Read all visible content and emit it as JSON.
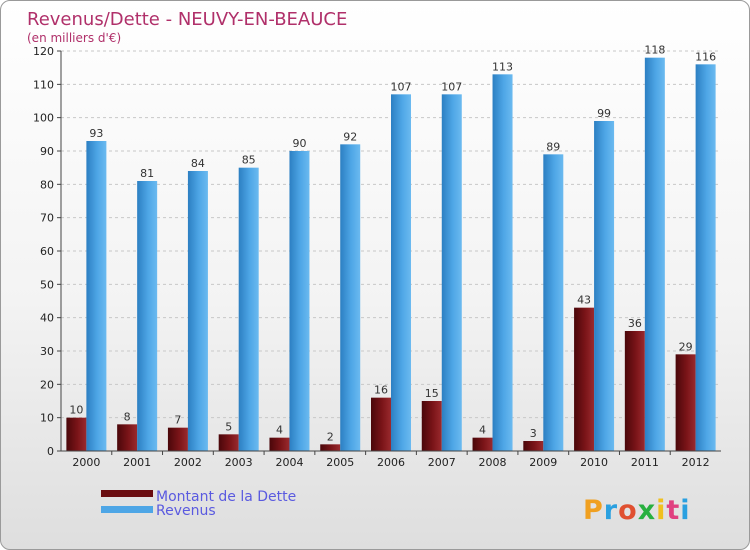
{
  "chart_data": {
    "type": "bar",
    "title": "Revenus/Dette - NEUVY-EN-BEAUCE",
    "subtitle": "(en milliers d'€)",
    "categories": [
      "2000",
      "2001",
      "2002",
      "2003",
      "2004",
      "2005",
      "2006",
      "2007",
      "2008",
      "2009",
      "2010",
      "2011",
      "2012"
    ],
    "series": [
      {
        "name": "Montant de la Dette",
        "color": "#7a1418",
        "values": [
          10,
          8,
          7,
          5,
          4,
          2,
          16,
          15,
          4,
          3,
          43,
          36,
          29
        ]
      },
      {
        "name": "Revenus",
        "color": "#4ea6e6",
        "values": [
          93,
          81,
          84,
          85,
          90,
          92,
          107,
          107,
          113,
          89,
          99,
          118,
          116
        ]
      }
    ],
    "ylim": [
      0,
      120
    ],
    "yticks": [
      0,
      10,
      20,
      30,
      40,
      50,
      60,
      70,
      80,
      90,
      100,
      110,
      120
    ],
    "grid": true,
    "legend_position": "bottom-left"
  },
  "logo": {
    "text": "Proxiti"
  },
  "colors": {
    "title": "#b0306a",
    "legend_text": "#5a5ae0"
  }
}
